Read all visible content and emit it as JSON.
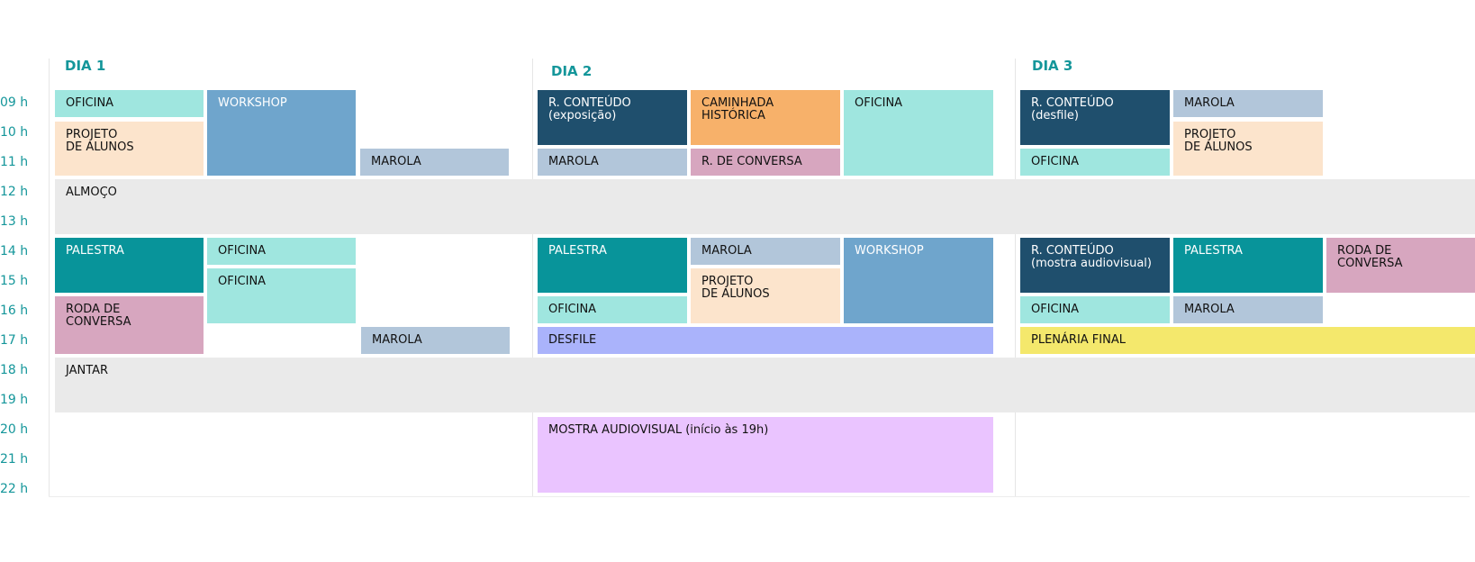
{
  "hours": [
    "09 h",
    "10 h",
    "11 h",
    "12 h",
    "13 h",
    "14 h",
    "15 h",
    "16 h",
    "17 h",
    "18 h",
    "19 h",
    "20 h",
    "21 h",
    "22 h"
  ],
  "days": [
    "DIA 1",
    "DIA 2",
    "DIA 3"
  ],
  "colors": {
    "oficina": "#9fe6df",
    "workshop": "#6fa5cc",
    "marola": "#b2c6da",
    "projeto": "#fce4cc",
    "palestra": "#08949a",
    "roda": "#d7a6bf",
    "conteudo": "#1f4f6d",
    "caminhada": "#f7b16a",
    "almoco": "#eaeaea",
    "desfile": "#aab3fb",
    "plenaria": "#f4e86c",
    "mostra": "#eac4ff"
  },
  "blocks": {
    "d1_oficina1": "OFICINA",
    "d1_workshop": "WORKSHOP",
    "d1_projeto": "PROJETO\nDE ALUNOS",
    "d1_marola1": "MAROLA",
    "almoco": "ALMOÇO",
    "d1_palestra": "PALESTRA",
    "d1_oficina2": "OFICINA",
    "d1_oficina3": "OFICINA",
    "d1_roda": "RODA DE\nCONVERSA",
    "d1_marola2": "MAROLA",
    "jantar": "JANTAR",
    "d2_conteudo": "R. CONTEÚDO\n(exposição)",
    "d2_caminhada": "CAMINHADA\nHISTÓRICA",
    "d2_oficina1": "OFICINA",
    "d2_marola1": "MAROLA",
    "d2_rconversa": "R. DE CONVERSA",
    "d2_palestra": "PALESTRA",
    "d2_marola2": "MAROLA",
    "d2_workshop": "WORKSHOP",
    "d2_projeto": "PROJETO\nDE ALUNOS",
    "d2_oficina2": "OFICINA",
    "d2_desfile": "DESFILE",
    "d2_mostra": "MOSTRA AUDIOVISUAL (início às 19h)",
    "d3_conteudo1": "R. CONTEÚDO\n(desfile)",
    "d3_marola1": "MAROLA",
    "d3_projeto": "PROJETO\nDE ALUNOS",
    "d3_oficina1": "OFICINA",
    "d3_conteudo2": "R. CONTEÚDO\n(mostra audiovisual)",
    "d3_palestra": "PALESTRA",
    "d3_roda": "RODA DE\nCONVERSA",
    "d3_oficina2": "OFICINA",
    "d3_marola2": "MAROLA",
    "d3_plenaria": "PLENÁRIA FINAL"
  }
}
